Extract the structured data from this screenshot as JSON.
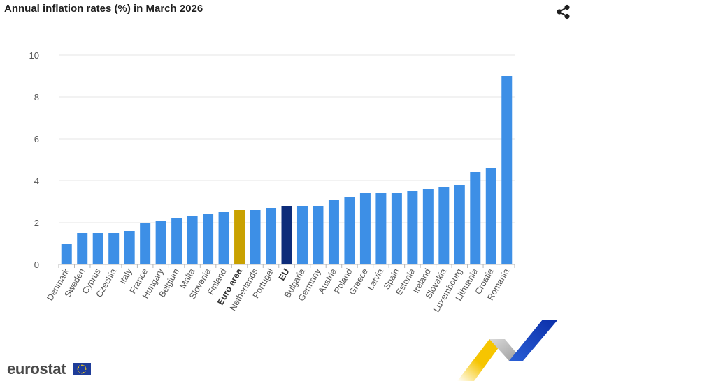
{
  "page": {
    "brand": "eurostat"
  },
  "icons": {
    "share": "share-icon",
    "flag": "eu-flag-icon",
    "ribbon": "eurostat-ribbon-graphic"
  },
  "colors": {
    "bar": "#3d8fe6",
    "highlight_euro_area": "#c9a100",
    "highlight_eu": "#0d2c7a",
    "grid": "#e6e6e6"
  },
  "chart_data": {
    "type": "bar",
    "title": "Annual inflation rates (%) in March 2026",
    "xlabel": "",
    "ylabel": "",
    "ylim": [
      0,
      10
    ],
    "yticks": [
      0,
      2,
      4,
      6,
      8,
      10
    ],
    "grid": true,
    "categories": [
      "Denmark",
      "Sweden",
      "Cyprus",
      "Czechia",
      "Italy",
      "France",
      "Hungary",
      "Belgium",
      "Malta",
      "Slovenia",
      "Finland",
      "Euro area",
      "Netherlands",
      "Portugal",
      "EU",
      "Bulgaria",
      "Germany",
      "Austria",
      "Poland",
      "Greece",
      "Latvia",
      "Spain",
      "Estonia",
      "Ireland",
      "Slovakia",
      "Luxembourg",
      "Lithuania",
      "Croatia",
      "Romania"
    ],
    "values": [
      1.0,
      1.5,
      1.5,
      1.5,
      1.6,
      2.0,
      2.1,
      2.2,
      2.3,
      2.4,
      2.5,
      2.6,
      2.6,
      2.7,
      2.8,
      2.8,
      2.8,
      3.1,
      3.2,
      3.4,
      3.4,
      3.4,
      3.5,
      3.6,
      3.7,
      3.8,
      4.4,
      4.6,
      9.0
    ],
    "highlights": {
      "Euro area": "highlight_euro_area",
      "EU": "highlight_eu"
    },
    "bold_labels": [
      "Euro area",
      "EU"
    ]
  }
}
